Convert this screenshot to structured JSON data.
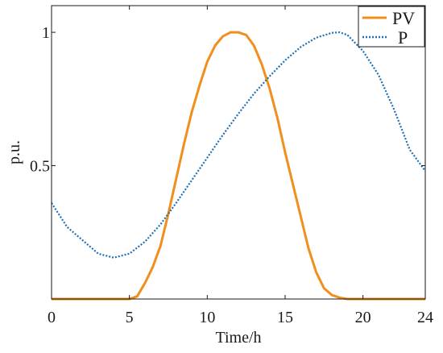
{
  "chart_data": {
    "type": "line",
    "xlabel": "Time/h",
    "ylabel": "p.u.",
    "xlim": [
      0,
      24
    ],
    "ylim": [
      0,
      1.1
    ],
    "xticks": [
      0,
      5,
      10,
      15,
      20,
      24
    ],
    "xtick_labels": [
      "0",
      "5",
      "10",
      "15",
      "20",
      "24"
    ],
    "yticks": [
      0.5,
      1
    ],
    "ytick_labels": [
      "0.5",
      "1"
    ],
    "grid": false,
    "legend": "top-right",
    "series": [
      {
        "name": "PV",
        "color": "#f28e1c",
        "style": "solid",
        "x": [
          0,
          5,
          5.5,
          6,
          6.5,
          7,
          7.5,
          8,
          8.5,
          9,
          9.5,
          10,
          10.5,
          11,
          11.5,
          12,
          12.5,
          13,
          13.5,
          14,
          14.5,
          15,
          15.5,
          16,
          16.5,
          17,
          17.5,
          18,
          18.5,
          19,
          19.5,
          20,
          24
        ],
        "values": [
          0,
          0,
          0.01,
          0.06,
          0.12,
          0.2,
          0.32,
          0.45,
          0.58,
          0.7,
          0.8,
          0.89,
          0.95,
          0.985,
          1.0,
          1.0,
          0.99,
          0.95,
          0.88,
          0.79,
          0.68,
          0.55,
          0.43,
          0.31,
          0.19,
          0.1,
          0.04,
          0.015,
          0.005,
          0,
          0,
          0,
          0
        ]
      },
      {
        "name": "P",
        "color": "#1f6fb5",
        "style": "dotted",
        "x": [
          0,
          1,
          2,
          3,
          4,
          5,
          6,
          7,
          8,
          9,
          10,
          11,
          12,
          13,
          14,
          15,
          16,
          17,
          18,
          18.5,
          19,
          20,
          21,
          22,
          23,
          24
        ],
        "values": [
          0.36,
          0.27,
          0.22,
          0.17,
          0.155,
          0.17,
          0.215,
          0.28,
          0.36,
          0.445,
          0.53,
          0.615,
          0.695,
          0.77,
          0.835,
          0.895,
          0.945,
          0.98,
          0.998,
          1.0,
          0.99,
          0.93,
          0.84,
          0.71,
          0.56,
          0.48
        ]
      }
    ]
  }
}
